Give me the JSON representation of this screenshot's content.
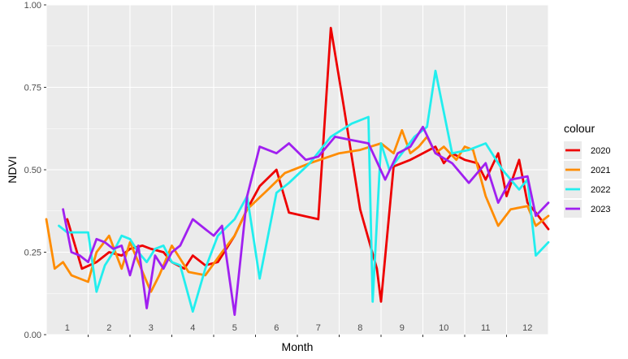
{
  "chart_data": {
    "type": "line",
    "xlabel": "Month",
    "ylabel": "NDVI",
    "ylim": [
      0,
      1
    ],
    "yticks": [
      "0.00",
      "0.25",
      "0.50",
      "0.75",
      "1.00"
    ],
    "month_labels": [
      "1",
      "2",
      "3",
      "4",
      "5",
      "6",
      "7",
      "8",
      "9",
      "10",
      "11",
      "12"
    ],
    "xlim": [
      0.5,
      12.5
    ],
    "grid": true,
    "legend": {
      "title": "colour",
      "position": "right"
    },
    "series": [
      {
        "name": "2020",
        "color": "#ee0000",
        "x": [
          1.0,
          1.35,
          1.7,
          2.0,
          2.3,
          2.5,
          2.8,
          3.0,
          3.3,
          3.5,
          3.8,
          4.0,
          4.3,
          4.6,
          5.0,
          5.3,
          5.6,
          6.0,
          6.3,
          7.0,
          7.3,
          7.6,
          8.0,
          8.4,
          8.5,
          8.8,
          9.2,
          9.5,
          9.8,
          10.0,
          10.2,
          10.5,
          10.8,
          11.0,
          11.3,
          11.5,
          11.8,
          12.0,
          12.2,
          12.5
        ],
        "y": [
          0.35,
          0.2,
          0.22,
          0.25,
          0.24,
          0.26,
          0.27,
          0.26,
          0.25,
          0.22,
          0.2,
          0.24,
          0.21,
          0.22,
          0.3,
          0.38,
          0.45,
          0.5,
          0.37,
          0.35,
          0.93,
          0.7,
          0.38,
          0.2,
          0.1,
          0.51,
          0.53,
          0.55,
          0.57,
          0.52,
          0.55,
          0.53,
          0.52,
          0.47,
          0.55,
          0.42,
          0.53,
          0.4,
          0.37,
          0.32
        ]
      },
      {
        "name": "2021",
        "color": "#ff8c00",
        "x": [
          0.5,
          0.7,
          0.9,
          1.1,
          1.3,
          1.5,
          1.7,
          2.0,
          2.3,
          2.5,
          2.7,
          3.0,
          3.2,
          3.5,
          3.9,
          4.3,
          4.7,
          5.0,
          5.3,
          5.8,
          6.2,
          6.8,
          7.5,
          8.0,
          8.5,
          8.8,
          9.0,
          9.2,
          9.4,
          9.6,
          9.8,
          10.0,
          10.3,
          10.5,
          10.7,
          11.0,
          11.3,
          11.6,
          12.0,
          12.2,
          12.5
        ],
        "y": [
          0.35,
          0.2,
          0.22,
          0.18,
          0.17,
          0.16,
          0.25,
          0.3,
          0.2,
          0.28,
          0.22,
          0.13,
          0.18,
          0.27,
          0.19,
          0.18,
          0.25,
          0.3,
          0.38,
          0.44,
          0.49,
          0.52,
          0.55,
          0.56,
          0.58,
          0.55,
          0.62,
          0.55,
          0.57,
          0.6,
          0.55,
          0.57,
          0.53,
          0.57,
          0.56,
          0.42,
          0.33,
          0.38,
          0.39,
          0.33,
          0.36
        ]
      },
      {
        "name": "2022",
        "color": "#22eeee",
        "x": [
          0.8,
          1.0,
          1.2,
          1.5,
          1.7,
          1.9,
          2.1,
          2.3,
          2.5,
          2.7,
          2.9,
          3.1,
          3.3,
          3.5,
          3.7,
          4.0,
          4.3,
          4.6,
          5.0,
          5.3,
          5.6,
          6.0,
          6.3,
          6.8,
          7.3,
          7.8,
          8.2,
          8.3,
          8.5,
          8.7,
          9.0,
          9.3,
          9.6,
          9.8,
          10.2,
          10.6,
          11.0,
          11.4,
          11.8,
          12.0,
          12.2,
          12.5
        ],
        "y": [
          0.33,
          0.31,
          0.31,
          0.31,
          0.13,
          0.21,
          0.25,
          0.3,
          0.29,
          0.25,
          0.22,
          0.26,
          0.27,
          0.22,
          0.21,
          0.07,
          0.2,
          0.3,
          0.35,
          0.42,
          0.17,
          0.43,
          0.46,
          0.52,
          0.6,
          0.64,
          0.66,
          0.1,
          0.58,
          0.5,
          0.55,
          0.6,
          0.63,
          0.8,
          0.55,
          0.56,
          0.58,
          0.5,
          0.44,
          0.47,
          0.24,
          0.28
        ]
      },
      {
        "name": "2023",
        "color": "#a020f0",
        "x": [
          0.9,
          1.1,
          1.3,
          1.5,
          1.7,
          1.9,
          2.1,
          2.3,
          2.5,
          2.7,
          2.9,
          3.1,
          3.3,
          3.5,
          3.7,
          4.0,
          4.3,
          4.5,
          4.7,
          5.0,
          5.3,
          5.6,
          6.0,
          6.3,
          6.7,
          7.0,
          7.4,
          7.8,
          8.2,
          8.6,
          8.9,
          9.2,
          9.5,
          9.8,
          10.2,
          10.6,
          11.0,
          11.3,
          11.6,
          12.0,
          12.2,
          12.5
        ],
        "y": [
          0.38,
          0.25,
          0.24,
          0.22,
          0.29,
          0.28,
          0.26,
          0.27,
          0.18,
          0.27,
          0.08,
          0.24,
          0.2,
          0.25,
          0.27,
          0.35,
          0.32,
          0.3,
          0.33,
          0.06,
          0.42,
          0.57,
          0.55,
          0.58,
          0.53,
          0.54,
          0.6,
          0.59,
          0.58,
          0.47,
          0.55,
          0.57,
          0.63,
          0.55,
          0.52,
          0.46,
          0.52,
          0.4,
          0.47,
          0.48,
          0.36,
          0.4
        ]
      }
    ]
  }
}
